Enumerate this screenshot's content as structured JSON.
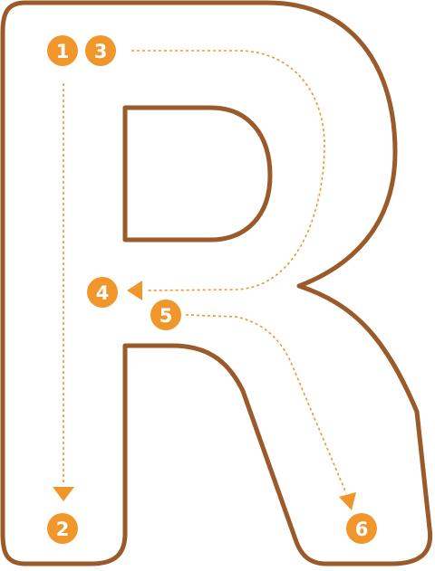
{
  "letter": {
    "character": "R",
    "outline_color": "#9a5a2a",
    "fill_color": "#ffffff"
  },
  "guide": {
    "color": "#f0962a",
    "badge_text_color": "#ffffff"
  },
  "steps": [
    {
      "label": "1"
    },
    {
      "label": "3"
    },
    {
      "label": "2"
    },
    {
      "label": "4"
    },
    {
      "label": "5"
    },
    {
      "label": "6"
    }
  ]
}
